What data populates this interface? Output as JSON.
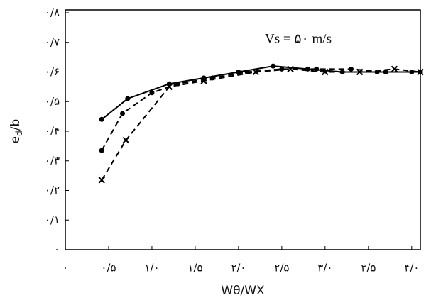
{
  "chart_data": {
    "type": "line",
    "annotation": "Vs = ۵۰ m/s",
    "x_label": "Wθ/WX",
    "y_label": {
      "base": "e",
      "sub": "d",
      "rest": "/b"
    },
    "xlim": [
      0,
      4.1
    ],
    "ylim": [
      0,
      0.8
    ],
    "xticks": [
      {
        "value": 0,
        "label": "۰"
      },
      {
        "value": 0.5,
        "label": "۰/۵"
      },
      {
        "value": 1.0,
        "label": "۱/۰"
      },
      {
        "value": 1.5,
        "label": "۱/۵"
      },
      {
        "value": 2.0,
        "label": "۲/۰"
      },
      {
        "value": 2.5,
        "label": "۲/۵"
      },
      {
        "value": 3.0,
        "label": "۳/۰"
      },
      {
        "value": 3.5,
        "label": "۳/۵"
      },
      {
        "value": 4.0,
        "label": "۴/۰"
      }
    ],
    "yticks": [
      {
        "value": 0,
        "label": "۰"
      },
      {
        "value": 0.1,
        "label": "۰/۱"
      },
      {
        "value": 0.2,
        "label": "۰/۲"
      },
      {
        "value": 0.3,
        "label": "۰/۳"
      },
      {
        "value": 0.4,
        "label": "۰/۴"
      },
      {
        "value": 0.5,
        "label": "۰/۵"
      },
      {
        "value": 0.6,
        "label": "۰/۶"
      },
      {
        "value": 0.7,
        "label": "۰/۷"
      },
      {
        "value": 0.8,
        "label": "۰/۸"
      }
    ],
    "series": [
      {
        "color": "#000000",
        "dashed": false,
        "marker": "circle",
        "x": [
          0.42,
          0.72,
          1.2,
          1.6,
          2.0,
          2.4,
          2.8,
          3.2,
          3.6,
          4.0,
          4.1
        ],
        "values": [
          0.44,
          0.51,
          0.56,
          0.58,
          0.6,
          0.62,
          0.61,
          0.6,
          0.6,
          0.6,
          0.6
        ]
      },
      {
        "color": "#000000",
        "dashed": true,
        "marker": "circle",
        "x": [
          0.42,
          0.66,
          1.0,
          1.3,
          1.7,
          2.1,
          2.5,
          2.9,
          3.3,
          3.7,
          4.1
        ],
        "values": [
          0.335,
          0.46,
          0.53,
          0.56,
          0.58,
          0.6,
          0.61,
          0.61,
          0.61,
          0.6,
          0.6
        ]
      },
      {
        "color": "#000000",
        "dashed": true,
        "marker": "x",
        "x": [
          0.42,
          0.7,
          1.2,
          1.6,
          2.2,
          2.6,
          3.0,
          3.4,
          3.8,
          4.1
        ],
        "values": [
          0.235,
          0.37,
          0.55,
          0.57,
          0.6,
          0.61,
          0.6,
          0.6,
          0.61,
          0.6
        ]
      }
    ]
  }
}
